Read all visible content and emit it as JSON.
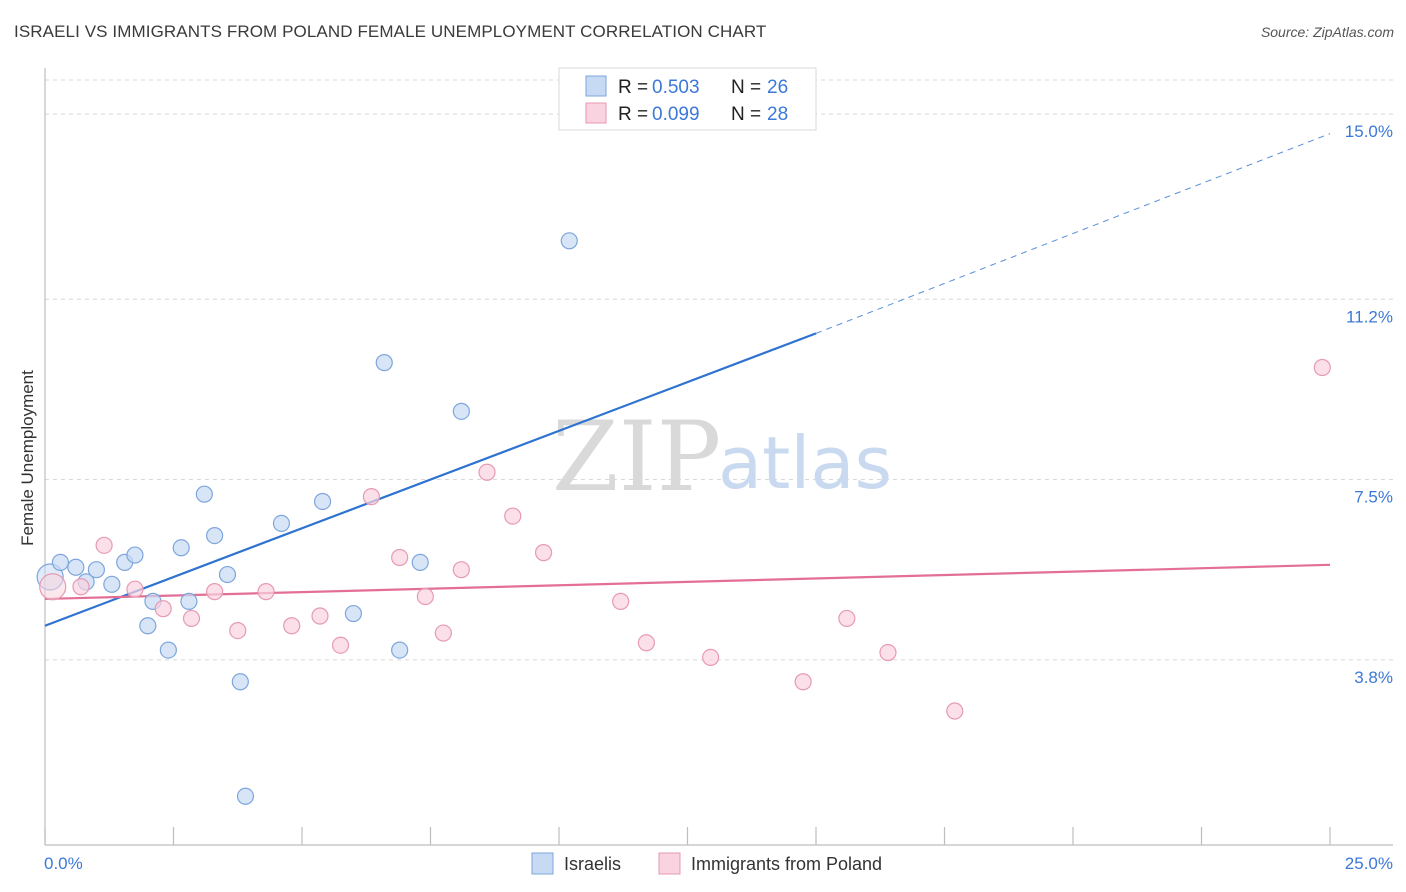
{
  "title": "ISRAELI VS IMMIGRANTS FROM POLAND FEMALE UNEMPLOYMENT CORRELATION CHART",
  "source": "Source: ZipAtlas.com",
  "watermark": {
    "zip": "ZIP",
    "atlas": "atlas"
  },
  "legend": {
    "rows": [
      {
        "r_label": "R = ",
        "r_value": "0.503",
        "n_label": "N = ",
        "n_value": "26",
        "color": "#aecbf0",
        "stroke": "#7ea6dc"
      },
      {
        "r_label": "R = ",
        "r_value": "0.099",
        "n_label": "N = ",
        "n_value": "28",
        "color": "#f7c5d4",
        "stroke": "#e79ab2"
      }
    ]
  },
  "bottom_legend": [
    {
      "label": "Israelis",
      "color": "#aecbf0",
      "stroke": "#7ea6dc"
    },
    {
      "label": "Immigrants from Poland",
      "color": "#f7c5d4",
      "stroke": "#e79ab2"
    }
  ],
  "chart_data": {
    "type": "scatter",
    "xlabel": "",
    "ylabel": "Female Unemployment",
    "xlim": [
      0,
      25
    ],
    "ylim": [
      0,
      15.7
    ],
    "x_tick_labels": [
      "0.0%",
      "25.0%"
    ],
    "y_ticks": [
      {
        "value": 3.8,
        "label": "3.8%"
      },
      {
        "value": 7.5,
        "label": "7.5%"
      },
      {
        "value": 11.2,
        "label": "11.2%"
      },
      {
        "value": 15.0,
        "label": "15.0%"
      }
    ],
    "grid": true,
    "legend_position": "top-center",
    "series": [
      {
        "name": "Israelis",
        "color": "#7ea6dc",
        "fill": "#c6daf4",
        "line_color": "#2f73d0",
        "trend": {
          "x0": 0,
          "y0": 4.5,
          "x1": 15,
          "y1": 10.5,
          "dashed_to_x": 25,
          "dashed_to_y": 14.6
        },
        "points": [
          [
            0.1,
            5.5
          ],
          [
            0.3,
            5.8
          ],
          [
            0.6,
            5.7
          ],
          [
            0.8,
            5.4
          ],
          [
            1.0,
            5.65
          ],
          [
            1.3,
            5.35
          ],
          [
            1.55,
            5.8
          ],
          [
            1.75,
            5.95
          ],
          [
            2.0,
            4.5
          ],
          [
            2.1,
            5.0
          ],
          [
            2.4,
            4.0
          ],
          [
            2.65,
            6.1
          ],
          [
            2.8,
            5.0
          ],
          [
            3.1,
            7.2
          ],
          [
            3.3,
            6.35
          ],
          [
            3.55,
            5.55
          ],
          [
            3.8,
            3.35
          ],
          [
            3.9,
            1.0
          ],
          [
            4.6,
            6.6
          ],
          [
            5.4,
            7.05
          ],
          [
            6.0,
            4.75
          ],
          [
            6.6,
            9.9
          ],
          [
            6.9,
            4.0
          ],
          [
            7.3,
            5.8
          ],
          [
            8.1,
            8.9
          ],
          [
            10.2,
            12.4
          ]
        ]
      },
      {
        "name": "Immigrants from Poland",
        "color": "#e79ab2",
        "fill": "#f9d3df",
        "line_color": "#e36f96",
        "trend": {
          "x0": 0,
          "y0": 5.05,
          "x1": 25,
          "y1": 5.75
        },
        "points": [
          [
            0.15,
            5.3
          ],
          [
            0.7,
            5.3
          ],
          [
            1.15,
            6.15
          ],
          [
            1.75,
            5.25
          ],
          [
            2.3,
            4.85
          ],
          [
            2.85,
            4.65
          ],
          [
            3.3,
            5.2
          ],
          [
            3.75,
            4.4
          ],
          [
            4.3,
            5.2
          ],
          [
            4.8,
            4.5
          ],
          [
            5.35,
            4.7
          ],
          [
            5.75,
            4.1
          ],
          [
            6.35,
            7.15
          ],
          [
            6.9,
            5.9
          ],
          [
            7.4,
            5.1
          ],
          [
            7.75,
            4.35
          ],
          [
            8.1,
            5.65
          ],
          [
            8.6,
            7.65
          ],
          [
            9.1,
            6.75
          ],
          [
            9.7,
            6.0
          ],
          [
            11.2,
            5.0
          ],
          [
            11.7,
            4.15
          ],
          [
            12.95,
            3.85
          ],
          [
            14.75,
            3.35
          ],
          [
            15.6,
            4.65
          ],
          [
            16.4,
            3.95
          ],
          [
            17.7,
            2.75
          ],
          [
            24.85,
            9.8
          ]
        ]
      }
    ]
  }
}
